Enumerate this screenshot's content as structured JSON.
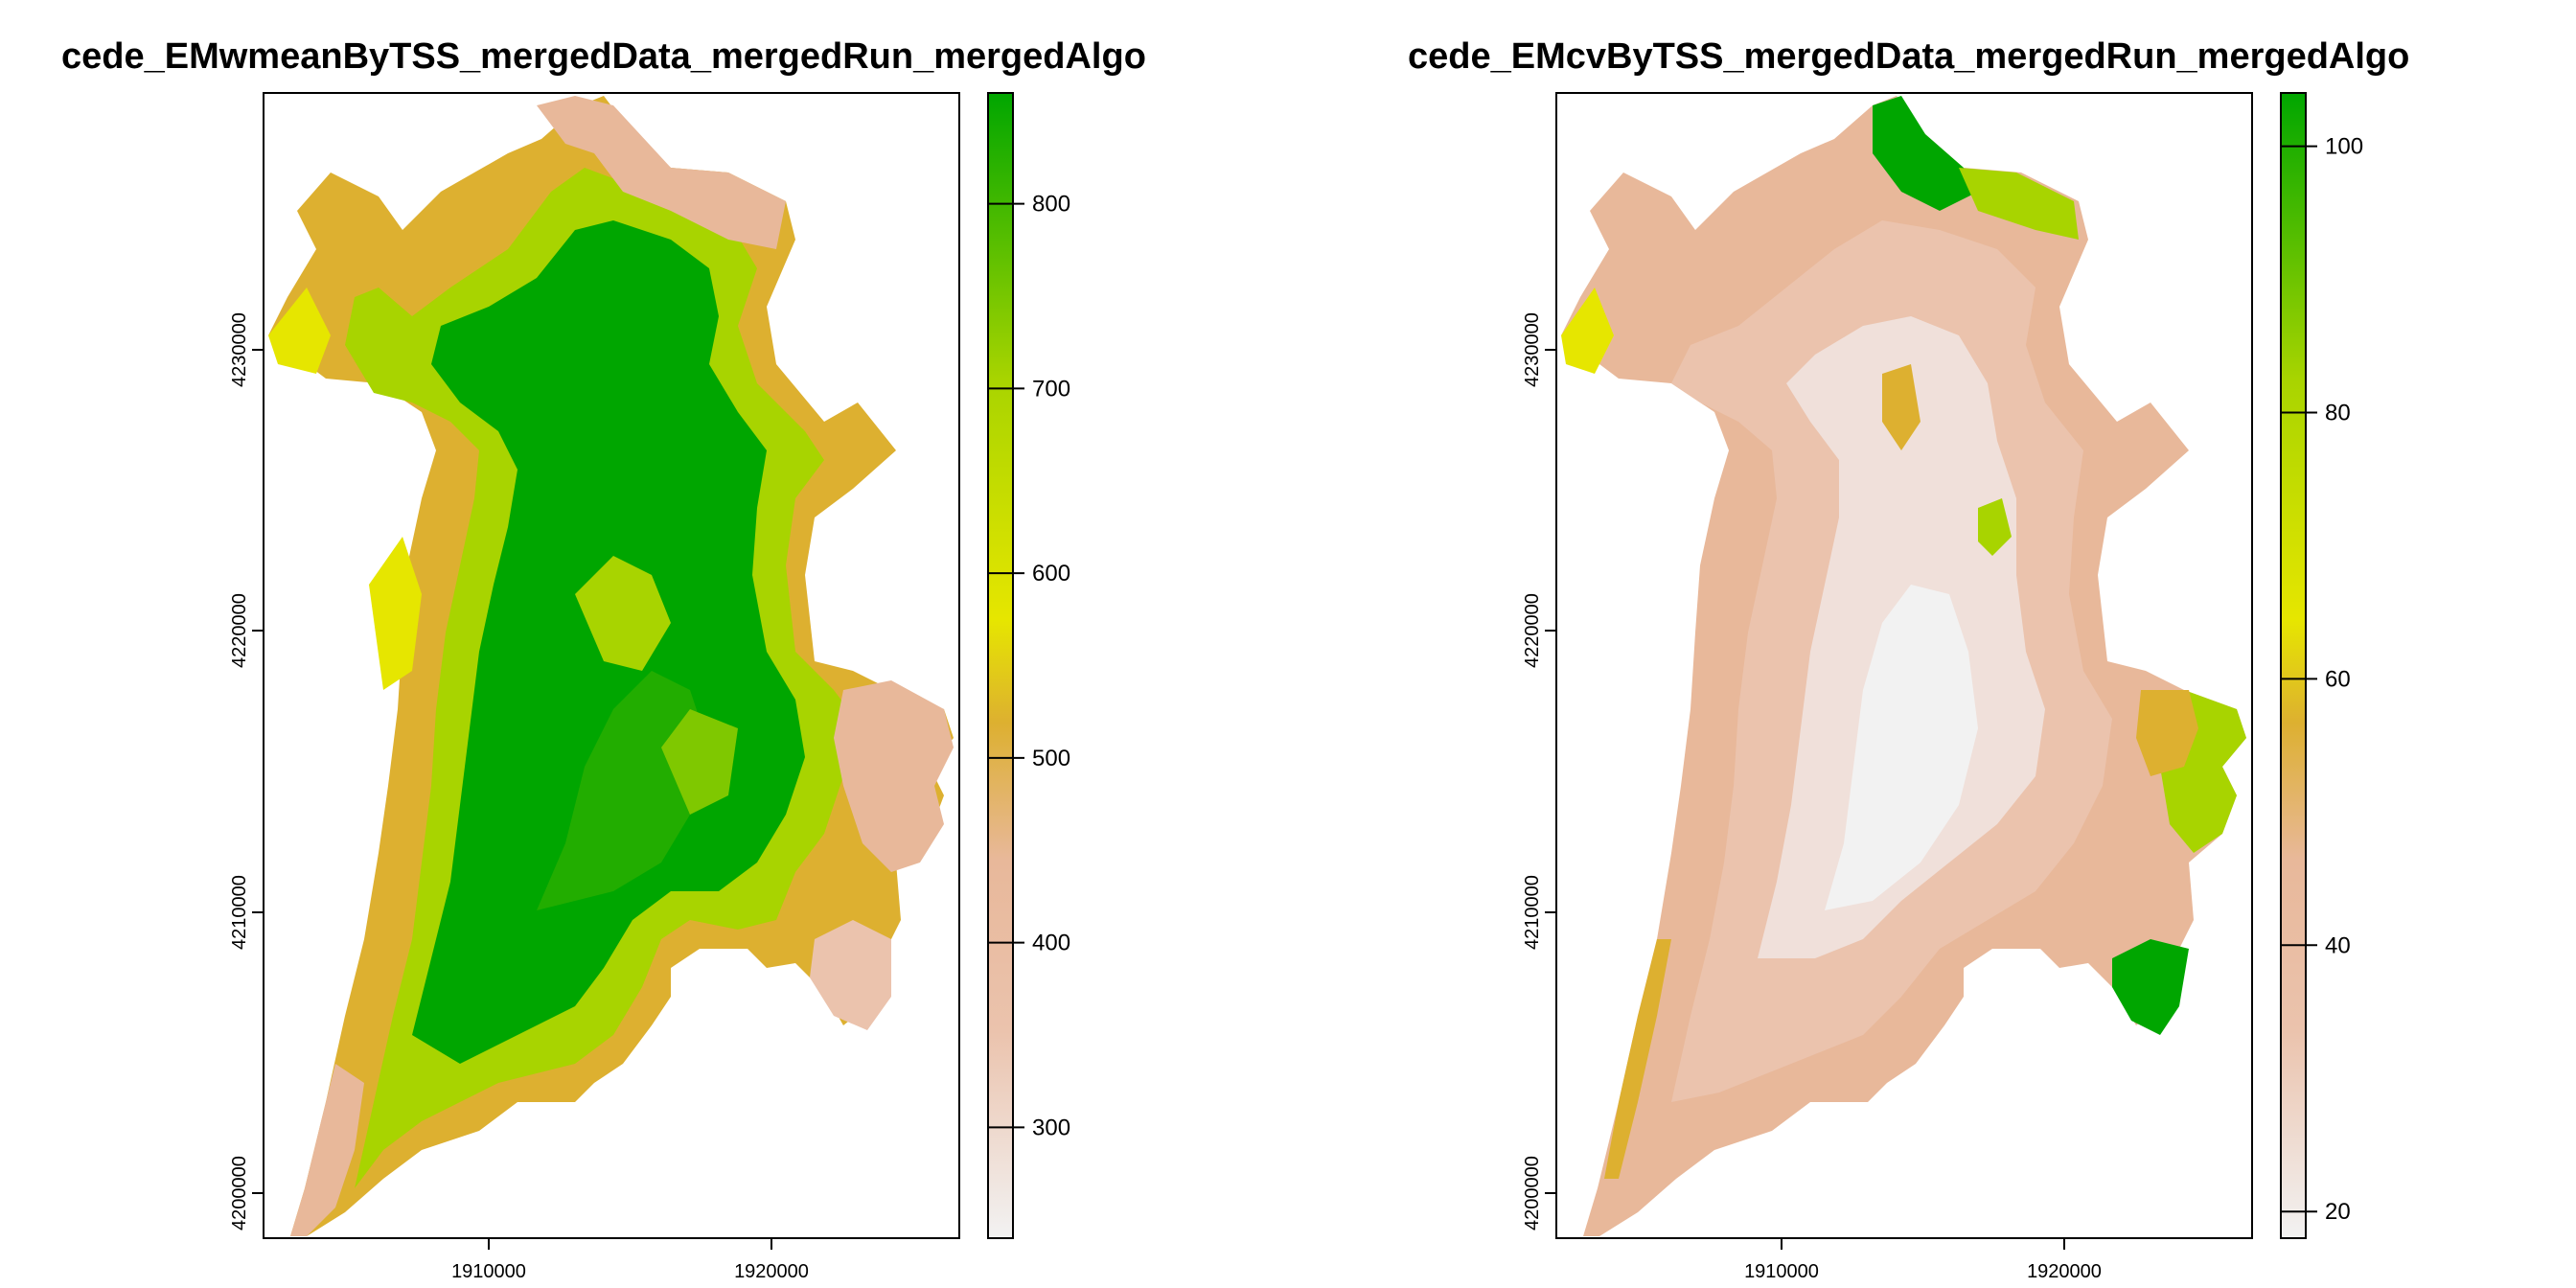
{
  "panels": [
    {
      "title": "cede_EMwmeanByTSS_mergedData_mergedRun_mergedAlgo",
      "x_ticks": [
        "1910000",
        "1920000"
      ],
      "y_ticks": [
        "4200000",
        "4210000",
        "4220000",
        "4230000"
      ],
      "legend": {
        "ticks": [
          "300",
          "400",
          "500",
          "600",
          "700",
          "800"
        ],
        "tick_values": [
          300,
          400,
          500,
          600,
          700,
          800
        ],
        "range": [
          240,
          860
        ]
      },
      "fill_colors": {
        "low": "#f2f2f2",
        "mid_low": "#e8b89a",
        "mid": "#ddb030",
        "mid_high": "#e6e600",
        "high": "#a8d400",
        "top": "#00a600"
      }
    },
    {
      "title": "cede_EMcvByTSS_mergedData_mergedRun_mergedAlgo",
      "x_ticks": [
        "1910000",
        "1920000"
      ],
      "y_ticks": [
        "4200000",
        "4210000",
        "4220000",
        "4230000"
      ],
      "legend": {
        "ticks": [
          "20",
          "40",
          "60",
          "80",
          "100"
        ],
        "tick_values": [
          20,
          40,
          60,
          80,
          100
        ],
        "range": [
          18,
          104
        ]
      },
      "fill_colors": {
        "low": "#f2f2f2",
        "mid_low": "#ebc3ad",
        "mid": "#e8b89a",
        "mid_high": "#ddb030",
        "high": "#a8d400",
        "top": "#00a600"
      }
    }
  ],
  "colorbar_stops": [
    "#f2f2f2",
    "#eccbb8",
    "#e8b89a",
    "#e1b04c",
    "#e6e600",
    "#a8d400",
    "#00a600"
  ]
}
